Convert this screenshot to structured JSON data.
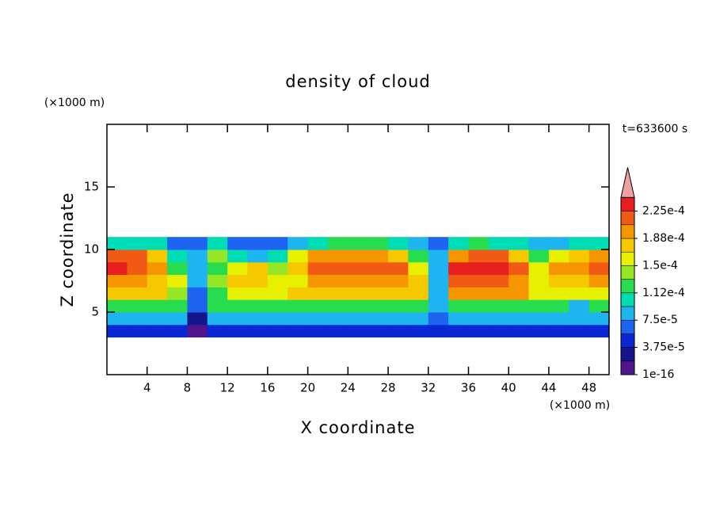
{
  "chart_data": {
    "type": "contour",
    "title": "density of cloud",
    "xlabel": "X coordinate",
    "ylabel": "Z coordinate",
    "xunit": "(×1000 m)",
    "yunit": "(×1000 m)",
    "annotation": "t=633600 s",
    "xlim": [
      0,
      50
    ],
    "ylim": [
      0,
      20
    ],
    "xticks": [
      4,
      8,
      12,
      16,
      20,
      24,
      28,
      32,
      36,
      40,
      44,
      48
    ],
    "yticks": [
      5,
      10,
      15
    ],
    "x": [
      1,
      3,
      5,
      7,
      9,
      11,
      13,
      15,
      17,
      19,
      21,
      23,
      25,
      27,
      29,
      31,
      33,
      35,
      37,
      39,
      41,
      43,
      45,
      47,
      49
    ],
    "y": [
      3.5,
      4.5,
      5.5,
      6.5,
      7.5,
      8.5,
      9.5,
      10.5
    ],
    "values": [
      [
        4e-05,
        4e-05,
        4e-05,
        4e-05,
        1e-05,
        4e-05,
        4e-05,
        4e-05,
        4e-05,
        4e-05,
        4e-05,
        4e-05,
        4e-05,
        4e-05,
        4e-05,
        4e-05,
        4e-05,
        4e-05,
        4e-05,
        4e-05,
        4e-05,
        4e-05,
        4e-05,
        4e-05,
        4e-05
      ],
      [
        9e-05,
        9e-05,
        9e-05,
        9e-05,
        3e-05,
        9e-05,
        9e-05,
        9e-05,
        9e-05,
        9e-05,
        9e-05,
        9e-05,
        9e-05,
        9e-05,
        9e-05,
        9e-05,
        6e-05,
        9e-05,
        9e-05,
        9e-05,
        9e-05,
        9e-05,
        9e-05,
        9e-05,
        9e-05
      ],
      [
        0.00013,
        0.00013,
        0.00013,
        0.00012,
        6e-05,
        0.00013,
        0.00013,
        0.00013,
        0.00013,
        0.00013,
        0.00013,
        0.00013,
        0.00013,
        0.00013,
        0.00013,
        0.00013,
        8e-05,
        0.00013,
        0.00013,
        0.00013,
        0.00013,
        0.00013,
        0.00013,
        9e-05,
        0.00013
      ],
      [
        0.00017,
        0.00017,
        0.00017,
        0.00014,
        7e-05,
        0.00012,
        0.00016,
        0.00016,
        0.00016,
        0.00017,
        0.00017,
        0.00017,
        0.00017,
        0.00017,
        0.00017,
        0.00017,
        8e-05,
        0.00019,
        0.00019,
        0.00019,
        0.00019,
        0.00015,
        0.00015,
        0.00015,
        0.00015
      ],
      [
        0.0002,
        0.00019,
        0.00018,
        0.00015,
        8e-05,
        0.00014,
        0.00017,
        0.00018,
        0.00016,
        0.00016,
        0.00019,
        0.0002,
        0.0002,
        0.0002,
        0.0002,
        0.00017,
        9e-05,
        0.00021,
        0.00022,
        0.00022,
        0.0002,
        0.00016,
        0.00018,
        0.00018,
        0.00019
      ],
      [
        0.00023,
        0.00022,
        0.0002,
        0.00013,
        9e-05,
        0.00012,
        0.00016,
        0.00017,
        0.00014,
        0.00017,
        0.00021,
        0.00022,
        0.00022,
        0.00022,
        0.00021,
        0.00016,
        9e-05,
        0.00023,
        0.00024,
        0.00023,
        0.00021,
        0.00016,
        0.00019,
        0.0002,
        0.00021
      ],
      [
        0.00021,
        0.00021,
        0.00018,
        0.0001,
        8e-05,
        0.00014,
        0.0001,
        9e-05,
        0.0001,
        0.00016,
        0.00019,
        0.0002,
        0.0002,
        0.0002,
        0.00018,
        0.00012,
        8e-05,
        0.0002,
        0.00022,
        0.00021,
        0.00018,
        0.00013,
        0.00016,
        0.00018,
        0.0002
      ],
      [
        0.0001,
        0.00011,
        0.0001,
        7e-05,
        6e-05,
        0.00011,
        6e-05,
        6e-05,
        6e-05,
        9e-05,
        0.00011,
        0.00012,
        0.00012,
        0.00012,
        0.00011,
        8e-05,
        6e-05,
        0.0001,
        0.00012,
        0.00011,
        0.0001,
        8e-05,
        9e-05,
        0.0001,
        0.00011
      ]
    ],
    "levels": [
      1e-16,
      1.875e-05,
      3.75e-05,
      5.625e-05,
      7.5e-05,
      9.375e-05,
      0.0001125,
      0.00013125,
      0.00015,
      0.00016875,
      0.0001875,
      0.00020625,
      0.000225,
      0.00024375
    ],
    "colors": [
      "#50148c",
      "#14148c",
      "#0a28d2",
      "#1e64f0",
      "#1eb4f0",
      "#00dcb4",
      "#28dc50",
      "#96e628",
      "#e6f000",
      "#f5c800",
      "#f59600",
      "#f05a14",
      "#e61e1e"
    ],
    "over_color": "#f0a0a0",
    "level_ticks": [
      1e-16,
      {
        "value": 3.75e-05,
        "label": "3.75e-5"
      },
      {
        "value": 7.5e-05,
        "label": "7.5e-5"
      },
      {
        "value": 0.0001125,
        "label": "1.12e-4"
      },
      {
        "value": 0.00015,
        "label": "1.5e-4"
      },
      {
        "value": 0.0001875,
        "label": "1.88e-4"
      },
      {
        "value": 0.000225,
        "label": "2.25e-4"
      }
    ]
  }
}
